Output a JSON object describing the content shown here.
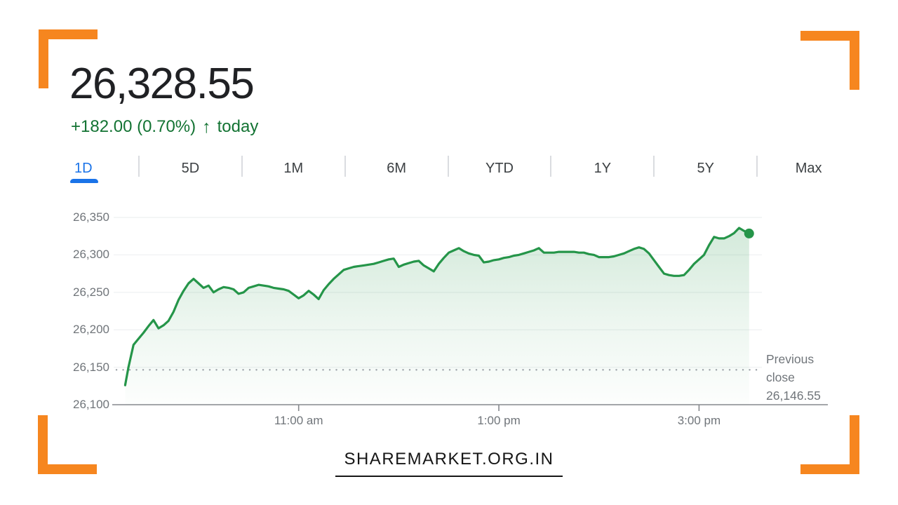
{
  "brand": {
    "accent_orange": "#F6861F",
    "active_tab_blue": "#1A73E8",
    "positive_green": "#137333",
    "line_green": "#259549"
  },
  "header": {
    "price": "26,328.55",
    "change": "+182.00 (0.70%)",
    "arrow_icon": "↑",
    "period": "today"
  },
  "tabs": [
    {
      "label": "1D",
      "active": true
    },
    {
      "label": "5D",
      "active": false
    },
    {
      "label": "1M",
      "active": false
    },
    {
      "label": "6M",
      "active": false
    },
    {
      "label": "YTD",
      "active": false
    },
    {
      "label": "1Y",
      "active": false
    },
    {
      "label": "5Y",
      "active": false
    },
    {
      "label": "Max",
      "active": false
    }
  ],
  "chart_data": {
    "type": "area",
    "title": "Index intraday price (1D)",
    "x_unit": "minutes since 09:15 am",
    "session": {
      "open": "9:15 am",
      "close": "3:30 pm"
    },
    "ylim": [
      26100,
      26350
    ],
    "grid": true,
    "legend_position": "none",
    "y_axis_ticks": [
      {
        "v": 26100,
        "label": "26,100"
      },
      {
        "v": 26150,
        "label": "26,150"
      },
      {
        "v": 26200,
        "label": "26,200"
      },
      {
        "v": 26250,
        "label": "26,250"
      },
      {
        "v": 26300,
        "label": "26,300"
      },
      {
        "v": 26350,
        "label": "26,350"
      }
    ],
    "x_axis_ticks": [
      {
        "t": 105,
        "label": "11:00 am"
      },
      {
        "t": 225,
        "label": "1:00 pm"
      },
      {
        "t": 345,
        "label": "3:00 pm"
      }
    ],
    "previous_close": {
      "value": 26146.55,
      "label_lines": [
        "Previous",
        "close",
        "26,146.55"
      ]
    },
    "last_value": 26328.55,
    "points": [
      [
        1,
        26126
      ],
      [
        3,
        26150
      ],
      [
        6,
        26180
      ],
      [
        9,
        26188
      ],
      [
        12,
        26196
      ],
      [
        15,
        26205
      ],
      [
        18,
        26213
      ],
      [
        21,
        26202
      ],
      [
        24,
        26206
      ],
      [
        27,
        26212
      ],
      [
        30,
        26224
      ],
      [
        33,
        26240
      ],
      [
        36,
        26252
      ],
      [
        39,
        26262
      ],
      [
        42,
        26268
      ],
      [
        45,
        26262
      ],
      [
        48,
        26256
      ],
      [
        51,
        26259
      ],
      [
        54,
        26250
      ],
      [
        57,
        26254
      ],
      [
        60,
        26257
      ],
      [
        63,
        26256
      ],
      [
        66,
        26254
      ],
      [
        69,
        26248
      ],
      [
        72,
        26250
      ],
      [
        75,
        26256
      ],
      [
        78,
        26258
      ],
      [
        81,
        26260
      ],
      [
        84,
        26259
      ],
      [
        87,
        26258
      ],
      [
        90,
        26256
      ],
      [
        93,
        26255
      ],
      [
        96,
        26254
      ],
      [
        99,
        26252
      ],
      [
        102,
        26247
      ],
      [
        105,
        26242
      ],
      [
        108,
        26246
      ],
      [
        111,
        26252
      ],
      [
        114,
        26247
      ],
      [
        117,
        26241
      ],
      [
        120,
        26253
      ],
      [
        123,
        26261
      ],
      [
        126,
        26268
      ],
      [
        129,
        26274
      ],
      [
        132,
        26280
      ],
      [
        135,
        26282
      ],
      [
        138,
        26284
      ],
      [
        141,
        26285
      ],
      [
        144,
        26286
      ],
      [
        147,
        26287
      ],
      [
        150,
        26288
      ],
      [
        153,
        26290
      ],
      [
        156,
        26292
      ],
      [
        159,
        26294
      ],
      [
        162,
        26295
      ],
      [
        165,
        26284
      ],
      [
        168,
        26287
      ],
      [
        171,
        26289
      ],
      [
        174,
        26291
      ],
      [
        177,
        26292
      ],
      [
        180,
        26286
      ],
      [
        183,
        26282
      ],
      [
        186,
        26278
      ],
      [
        189,
        26288
      ],
      [
        192,
        26296
      ],
      [
        195,
        26303
      ],
      [
        198,
        26306
      ],
      [
        201,
        26309
      ],
      [
        204,
        26305
      ],
      [
        207,
        26302
      ],
      [
        210,
        26300
      ],
      [
        213,
        26299
      ],
      [
        216,
        26290
      ],
      [
        219,
        26291
      ],
      [
        222,
        26293
      ],
      [
        225,
        26294
      ],
      [
        228,
        26296
      ],
      [
        231,
        26297
      ],
      [
        234,
        26299
      ],
      [
        237,
        26300
      ],
      [
        240,
        26302
      ],
      [
        243,
        26304
      ],
      [
        246,
        26306
      ],
      [
        249,
        26309
      ],
      [
        252,
        26303
      ],
      [
        255,
        26303
      ],
      [
        258,
        26303
      ],
      [
        261,
        26304
      ],
      [
        264,
        26304
      ],
      [
        267,
        26304
      ],
      [
        270,
        26304
      ],
      [
        273,
        26303
      ],
      [
        276,
        26303
      ],
      [
        279,
        26301
      ],
      [
        282,
        26300
      ],
      [
        285,
        26297
      ],
      [
        288,
        26297
      ],
      [
        291,
        26297
      ],
      [
        294,
        26298
      ],
      [
        297,
        26300
      ],
      [
        300,
        26302
      ],
      [
        303,
        26305
      ],
      [
        306,
        26308
      ],
      [
        309,
        26310
      ],
      [
        312,
        26308
      ],
      [
        315,
        26302
      ],
      [
        318,
        26293
      ],
      [
        321,
        26284
      ],
      [
        324,
        26275
      ],
      [
        327,
        26273
      ],
      [
        330,
        26272
      ],
      [
        333,
        26272
      ],
      [
        336,
        26273
      ],
      [
        339,
        26280
      ],
      [
        342,
        26288
      ],
      [
        345,
        26294
      ],
      [
        348,
        26300
      ],
      [
        351,
        26313
      ],
      [
        354,
        26324
      ],
      [
        357,
        26322
      ],
      [
        360,
        26322
      ],
      [
        363,
        26325
      ],
      [
        366,
        26329
      ],
      [
        369,
        26336
      ],
      [
        372,
        26332
      ],
      [
        375,
        26328.55
      ]
    ]
  },
  "footer": {
    "site": "SHAREMARKET.ORG.IN"
  }
}
